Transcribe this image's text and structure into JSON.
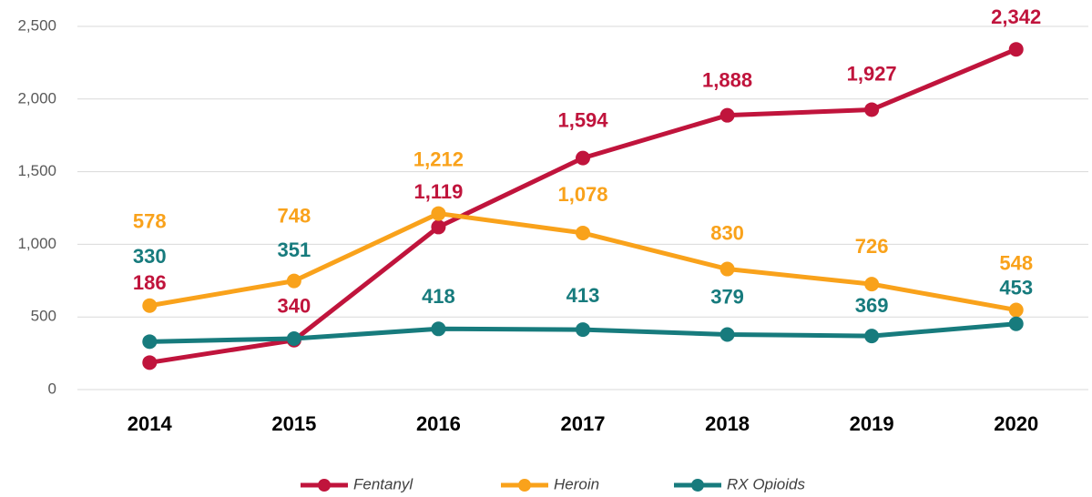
{
  "chart_data": {
    "type": "line",
    "categories": [
      "2014",
      "2015",
      "2016",
      "2017",
      "2018",
      "2019",
      "2020"
    ],
    "series": [
      {
        "name": "Fentanyl",
        "color": "#c0143c",
        "values": [
          186,
          340,
          1119,
          1594,
          1888,
          1927,
          2342
        ],
        "value_labels": [
          "186",
          "340",
          "1,119",
          "1,594",
          "1,888",
          "1,927",
          "2,342"
        ]
      },
      {
        "name": "Heroin",
        "color": "#f9a21b",
        "values": [
          578,
          748,
          1212,
          1078,
          830,
          726,
          548
        ],
        "value_labels": [
          "578",
          "748",
          "1,212",
          "1,078",
          "830",
          "726",
          "548"
        ]
      },
      {
        "name": "RX Opioids",
        "color": "#177b7d",
        "values": [
          330,
          351,
          418,
          413,
          379,
          369,
          453
        ],
        "value_labels": [
          "330",
          "351",
          "418",
          "413",
          "379",
          "369",
          "453"
        ]
      }
    ],
    "ylim": [
      0,
      2500
    ],
    "yticks": [
      0,
      500,
      {
        "value": 1000,
        "label": "1,000"
      },
      {
        "value": 1500,
        "label": "1,500"
      },
      {
        "value": 2000,
        "label": "2,000"
      },
      {
        "value": 2500,
        "label": "2,500"
      }
    ],
    "grid": true,
    "legend": "bottom"
  }
}
